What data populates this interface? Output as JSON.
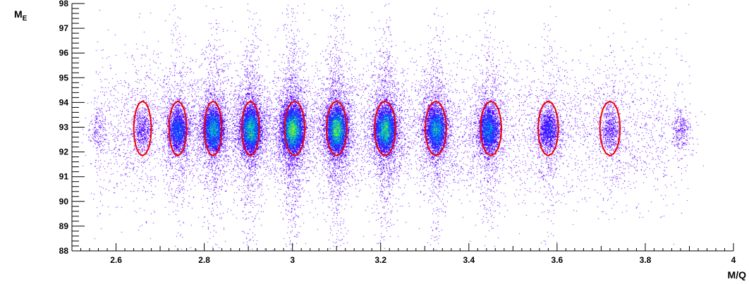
{
  "chart_data": {
    "type": "scatter",
    "subtype": "2d-density-with-contour-cuts",
    "title": "",
    "xlabel": "M/Q",
    "ylabel": "M_E",
    "ylabel_main": "M",
    "ylabel_sub": "E",
    "xlim": [
      2.5,
      4.0
    ],
    "ylim": [
      88,
      98
    ],
    "x_tick_labels": [
      "2.6",
      "2.8",
      "3",
      "3.2",
      "3.4",
      "3.6",
      "3.8",
      "4"
    ],
    "x_tick_values": [
      2.6,
      2.8,
      3.0,
      3.2,
      3.4,
      3.6,
      3.8,
      4.0
    ],
    "y_tick_labels": [
      "88",
      "89",
      "90",
      "91",
      "92",
      "93",
      "94",
      "95",
      "96",
      "97",
      "98"
    ],
    "y_tick_values": [
      88,
      89,
      90,
      91,
      92,
      93,
      94,
      95,
      96,
      97,
      98
    ],
    "grid": false,
    "colors": {
      "point_low": "#5a00ff",
      "point_mid": "#0070ff",
      "point_high": "#00e090",
      "point_peak": "#f0f000",
      "cut_contour": "#ee0000"
    },
    "clusters": [
      {
        "x": 2.66,
        "y": 92.9,
        "relative_density": 0.08
      },
      {
        "x": 2.74,
        "y": 92.9,
        "relative_density": 0.35
      },
      {
        "x": 2.82,
        "y": 92.9,
        "relative_density": 0.6
      },
      {
        "x": 2.905,
        "y": 92.9,
        "relative_density": 0.75
      },
      {
        "x": 3.0,
        "y": 92.9,
        "relative_density": 1.0
      },
      {
        "x": 3.1,
        "y": 92.9,
        "relative_density": 0.9
      },
      {
        "x": 3.21,
        "y": 92.9,
        "relative_density": 0.8
      },
      {
        "x": 3.325,
        "y": 92.9,
        "relative_density": 0.6
      },
      {
        "x": 3.445,
        "y": 92.9,
        "relative_density": 0.45
      },
      {
        "x": 3.58,
        "y": 92.9,
        "relative_density": 0.2
      },
      {
        "x": 3.72,
        "y": 92.9,
        "relative_density": 0.08
      },
      {
        "x": 3.88,
        "y": 92.9,
        "relative_density": 0.04
      },
      {
        "x": 2.56,
        "y": 92.9,
        "relative_density": 0.02
      }
    ],
    "cut_contours": [
      {
        "x_center": 2.66,
        "x_halfwidth": 0.02,
        "y_min": 91.85,
        "y_max": 94.05
      },
      {
        "x_center": 2.74,
        "x_halfwidth": 0.02,
        "y_min": 91.85,
        "y_max": 94.05
      },
      {
        "x_center": 2.82,
        "x_halfwidth": 0.02,
        "y_min": 91.85,
        "y_max": 94.05
      },
      {
        "x_center": 2.905,
        "x_halfwidth": 0.02,
        "y_min": 91.85,
        "y_max": 94.05
      },
      {
        "x_center": 3.005,
        "x_halfwidth": 0.023,
        "y_min": 91.85,
        "y_max": 94.05
      },
      {
        "x_center": 3.1,
        "x_halfwidth": 0.023,
        "y_min": 91.85,
        "y_max": 94.05
      },
      {
        "x_center": 3.21,
        "x_halfwidth": 0.024,
        "y_min": 91.85,
        "y_max": 94.05
      },
      {
        "x_center": 3.325,
        "x_halfwidth": 0.024,
        "y_min": 91.85,
        "y_max": 94.05
      },
      {
        "x_center": 3.45,
        "x_halfwidth": 0.024,
        "y_min": 91.85,
        "y_max": 94.05
      },
      {
        "x_center": 3.58,
        "x_halfwidth": 0.023,
        "y_min": 91.85,
        "y_max": 94.05
      },
      {
        "x_center": 3.72,
        "x_halfwidth": 0.023,
        "y_min": 91.85,
        "y_max": 94.05
      }
    ]
  }
}
